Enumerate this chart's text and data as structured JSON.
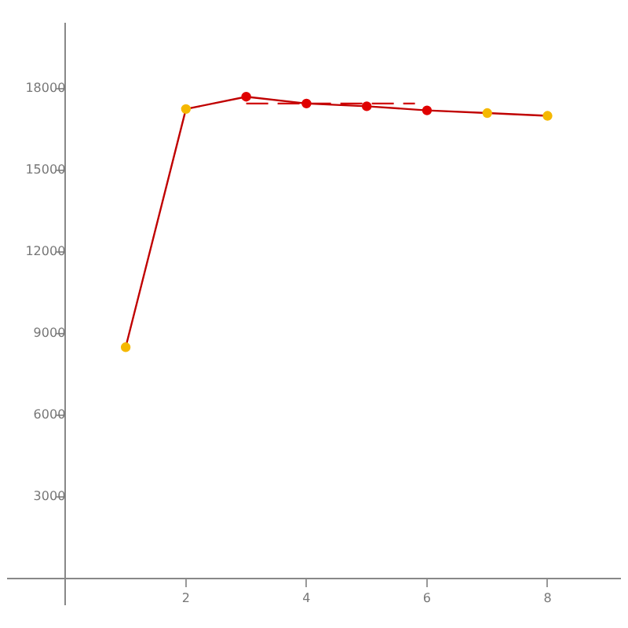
{
  "chart_data": {
    "type": "line",
    "x": [
      1,
      2,
      3,
      4,
      5,
      6,
      7,
      8
    ],
    "series": [
      {
        "color": "#c00000",
        "colors": [
          "#f5b800",
          "#f5b800",
          "#e00000",
          "#e00000",
          "#e00000",
          "#e00000",
          "#f5b800",
          "#f5b800"
        ],
        "values": [
          8500,
          17250,
          17700,
          17450,
          17350,
          17200,
          17100,
          17000
        ]
      },
      {
        "color": "#d00000",
        "x": [
          3,
          5.8
        ],
        "values": [
          17450,
          17450
        ],
        "line_style": "dashed",
        "marker": "none"
      }
    ],
    "xlim": [
      -0.95,
      9.2
    ],
    "ylim": [
      -960,
      20400
    ],
    "xticks": [
      2,
      4,
      6,
      8
    ],
    "yticks": [
      3000,
      6000,
      9000,
      12000,
      15000,
      18000
    ],
    "marker": "circle",
    "grid": false,
    "legend": false
  }
}
